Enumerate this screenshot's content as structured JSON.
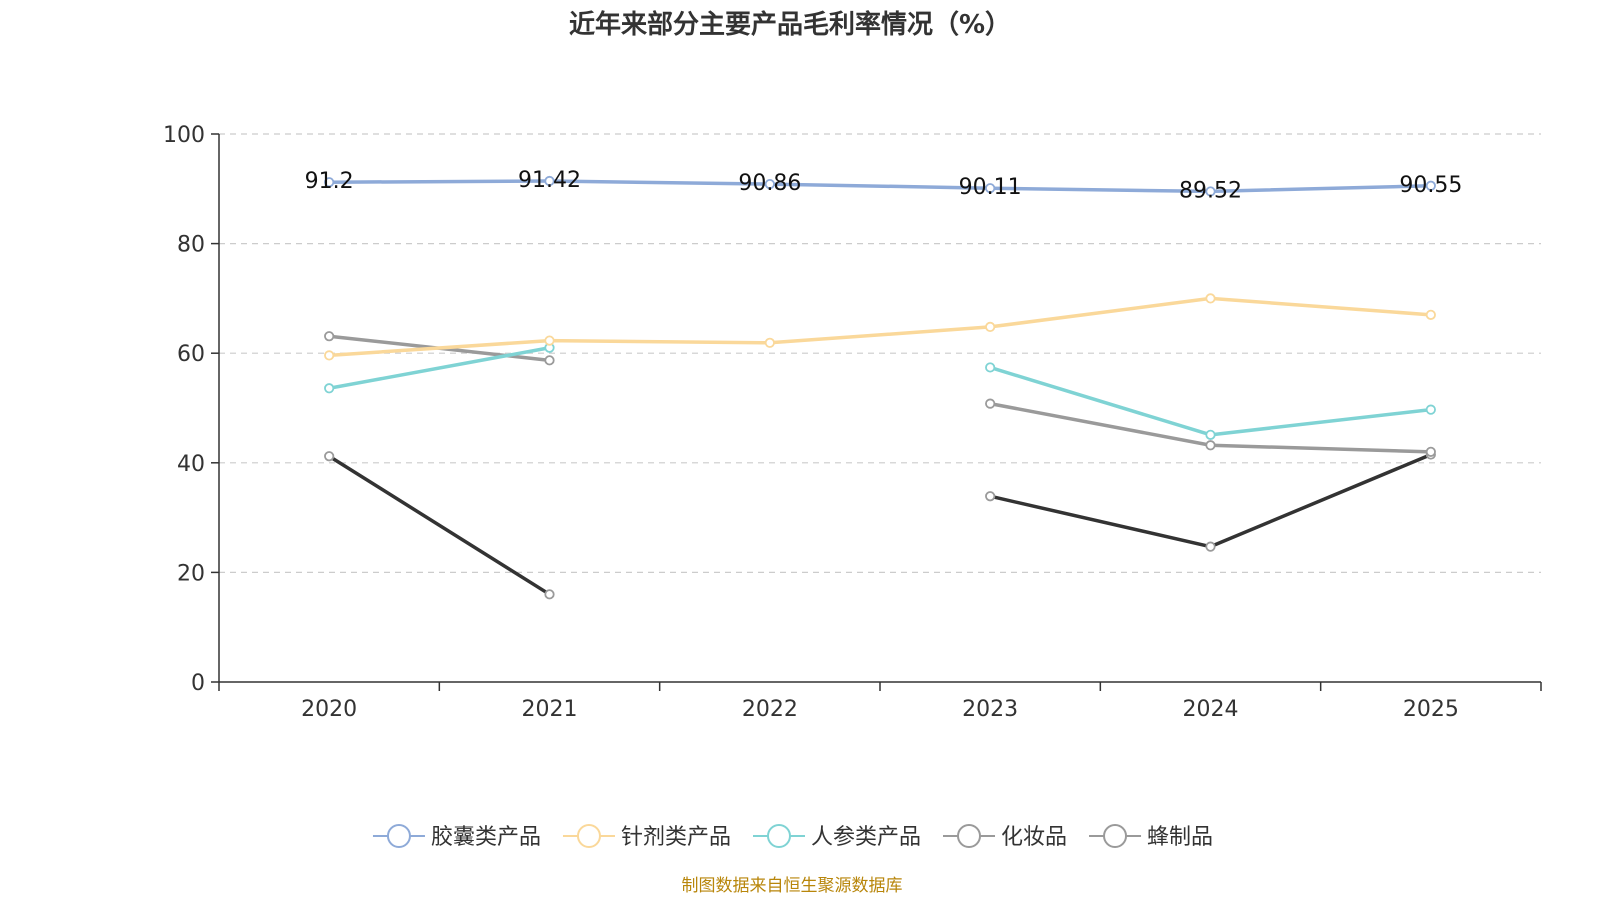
{
  "chart_data": {
    "type": "line",
    "title": "近年来部分主要产品毛利率情况（%）",
    "categories": [
      "2020",
      "2021",
      "2022",
      "2023",
      "2024",
      "2025"
    ],
    "ylim": [
      0,
      100
    ],
    "yticks": [
      0,
      20,
      40,
      60,
      80,
      100
    ],
    "grid": true,
    "legend_position": "bottom",
    "series": [
      {
        "name": "胶囊类产品",
        "color": "#8eaad8",
        "values": [
          91.2,
          91.42,
          90.86,
          90.11,
          89.52,
          90.55
        ],
        "labels": [
          "91.2",
          "91.42",
          "90.86",
          "90.11",
          "89.52",
          "90.55"
        ],
        "show_labels": true
      },
      {
        "name": "针剂类产品",
        "color": "#fad89a",
        "values": [
          59.6,
          62.3,
          61.9,
          64.8,
          70.0,
          67.0
        ],
        "show_labels": false
      },
      {
        "name": "人参类产品",
        "color": "#7fd3d4",
        "values": [
          53.6,
          61.0,
          null,
          57.4,
          45.1,
          49.7
        ],
        "show_labels": false
      },
      {
        "name": "化妆品",
        "color": "#9a9a9a",
        "values": [
          63.1,
          58.7,
          null,
          50.8,
          43.2,
          42.0
        ],
        "show_labels": false
      },
      {
        "name": "蜂制品",
        "color": "#333333",
        "legend_color": "#9a9a9a",
        "values": [
          41.2,
          16.0,
          null,
          33.9,
          24.7,
          41.5
        ],
        "show_labels": false
      }
    ],
    "source": "制图数据来自恒生聚源数据库"
  }
}
